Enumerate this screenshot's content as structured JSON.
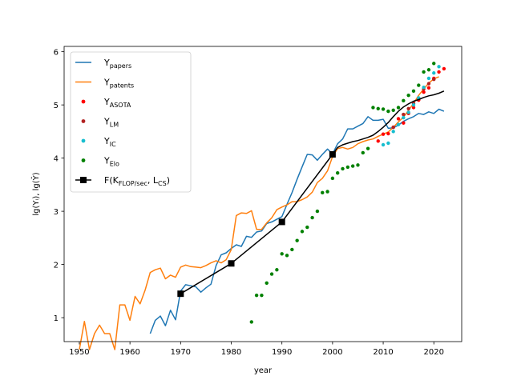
{
  "chart_data": {
    "type": "line",
    "title": "",
    "xlabel": "year",
    "ylabel": "lg(Yᵢ), lg(Ŷ)",
    "xlim": [
      1947,
      2025.5
    ],
    "ylim": [
      0.55,
      6.1
    ],
    "xticks": [
      1950,
      1960,
      1970,
      1980,
      1990,
      2000,
      2010,
      2020
    ],
    "yticks": [
      1,
      2,
      3,
      4,
      5,
      6
    ],
    "grid": false,
    "legend_position": "upper-left",
    "series": [
      {
        "name": "Y_papers",
        "label_main": "Y",
        "label_sub": "papers",
        "kind": "line",
        "color": "#1f77b4",
        "x": [
          1964,
          1965,
          1966,
          1967,
          1968,
          1969,
          1970,
          1971,
          1972,
          1973,
          1974,
          1975,
          1976,
          1977,
          1978,
          1979,
          1980,
          1981,
          1982,
          1983,
          1984,
          1985,
          1986,
          1987,
          1988,
          1989,
          1990,
          1991,
          1992,
          1993,
          1994,
          1995,
          1996,
          1997,
          1998,
          1999,
          2000,
          2001,
          2002,
          2003,
          2004,
          2005,
          2006,
          2007,
          2008,
          2009,
          2010,
          2011,
          2012,
          2013,
          2014,
          2015,
          2016,
          2017,
          2018,
          2019,
          2020,
          2021,
          2022
        ],
        "y": [
          0.7,
          0.95,
          1.03,
          0.85,
          1.14,
          0.96,
          1.5,
          1.62,
          1.6,
          1.58,
          1.48,
          1.56,
          1.63,
          1.98,
          2.18,
          2.22,
          2.3,
          2.37,
          2.34,
          2.53,
          2.51,
          2.61,
          2.63,
          2.77,
          2.8,
          2.85,
          2.9,
          3.13,
          3.35,
          3.6,
          3.84,
          4.07,
          4.06,
          3.96,
          4.07,
          4.17,
          4.08,
          4.27,
          4.36,
          4.55,
          4.55,
          4.6,
          4.65,
          4.78,
          4.71,
          4.71,
          4.73,
          4.56,
          4.57,
          4.62,
          4.69,
          4.74,
          4.78,
          4.84,
          4.82,
          4.87,
          4.84,
          4.92,
          4.88
        ]
      },
      {
        "name": "Y_patents",
        "label_main": "Y",
        "label_sub": "patents",
        "kind": "line",
        "color": "#ff7f0e",
        "x": [
          1950,
          1951,
          1952,
          1953,
          1954,
          1955,
          1956,
          1957,
          1958,
          1959,
          1960,
          1961,
          1962,
          1963,
          1964,
          1965,
          1966,
          1967,
          1968,
          1969,
          1970,
          1971,
          1972,
          1973,
          1974,
          1975,
          1976,
          1977,
          1978,
          1979,
          1980,
          1981,
          1982,
          1983,
          1984,
          1985,
          1986,
          1987,
          1988,
          1989,
          1990,
          1991,
          1992,
          1993,
          1994,
          1995,
          1996,
          1997,
          1998,
          1999,
          2000,
          2001,
          2002,
          2003,
          2004,
          2005,
          2006,
          2007,
          2008,
          2009,
          2010,
          2011,
          2012,
          2013,
          2014,
          2015,
          2016,
          2017,
          2018,
          2019,
          2020,
          2021
        ],
        "y": [
          0.4,
          0.93,
          0.4,
          0.7,
          0.86,
          0.7,
          0.7,
          0.4,
          1.24,
          1.24,
          0.95,
          1.4,
          1.26,
          1.52,
          1.85,
          1.9,
          1.93,
          1.73,
          1.8,
          1.76,
          1.95,
          1.99,
          1.96,
          1.95,
          1.94,
          1.98,
          2.03,
          2.07,
          2.03,
          2.09,
          2.28,
          2.92,
          2.97,
          2.96,
          3.01,
          2.66,
          2.66,
          2.78,
          2.88,
          3.03,
          3.08,
          3.12,
          3.18,
          3.18,
          3.22,
          3.27,
          3.36,
          3.54,
          3.62,
          3.76,
          4.03,
          4.18,
          4.2,
          4.17,
          4.2,
          4.27,
          4.31,
          4.34,
          4.36,
          4.41,
          4.45,
          4.49,
          4.58,
          4.68,
          4.77,
          4.9,
          5.03,
          5.18,
          5.3,
          5.41,
          5.49,
          5.53
        ]
      },
      {
        "name": "Y_ASOTA",
        "label_main": "Y",
        "label_sub": "ASOTA",
        "kind": "scatter",
        "color": "#ff0000",
        "x": [
          2009,
          2010,
          2011,
          2012,
          2013,
          2014,
          2015,
          2016,
          2017,
          2018,
          2019,
          2020,
          2021,
          2022
        ],
        "y": [
          4.32,
          4.45,
          4.46,
          4.58,
          4.74,
          4.66,
          4.84,
          4.95,
          5.09,
          5.24,
          5.32,
          5.5,
          5.62,
          5.68
        ]
      },
      {
        "name": "Y_LM",
        "label_main": "Y",
        "label_sub": "LM",
        "kind": "scatter",
        "color": "#b22222",
        "x": [
          2012,
          2014,
          2015,
          2016,
          2017,
          2018,
          2019,
          2020
        ],
        "y": [
          4.58,
          4.82,
          4.93,
          5.03,
          5.12,
          5.3,
          5.4,
          5.48
        ]
      },
      {
        "name": "Y_IC",
        "label_main": "Y",
        "label_sub": "IC",
        "kind": "scatter",
        "color": "#17becf",
        "x": [
          2010,
          2011,
          2012,
          2013,
          2014,
          2015,
          2016,
          2017,
          2018,
          2019,
          2020,
          2021
        ],
        "y": [
          4.25,
          4.28,
          4.5,
          4.63,
          4.76,
          4.86,
          5.0,
          5.13,
          5.33,
          5.5,
          5.6,
          5.72
        ]
      },
      {
        "name": "Y_Elo",
        "label_main": "Y",
        "label_sub": "Elo",
        "kind": "scatter",
        "color": "#008000",
        "x": [
          1984,
          1985,
          1986,
          1987,
          1988,
          1989,
          1990,
          1991,
          1992,
          1993,
          1994,
          1995,
          1996,
          1997,
          1998,
          1999,
          2000,
          2001,
          2002,
          2003,
          2004,
          2005,
          2006,
          2007,
          2008,
          2009,
          2010,
          2011,
          2012,
          2013,
          2014,
          2015,
          2016,
          2017,
          2018,
          2019,
          2020
        ],
        "y": [
          0.92,
          1.42,
          1.42,
          1.65,
          1.82,
          1.9,
          2.2,
          2.17,
          2.28,
          2.45,
          2.62,
          2.7,
          2.88,
          3.0,
          3.35,
          3.37,
          3.62,
          3.72,
          3.8,
          3.83,
          3.85,
          3.87,
          4.1,
          4.18,
          4.95,
          4.93,
          4.92,
          4.88,
          4.9,
          4.95,
          5.08,
          5.18,
          5.26,
          5.37,
          5.62,
          5.66,
          5.78
        ]
      },
      {
        "name": "F(K_FLOP/sec, L_CS)",
        "label_main": "F(K",
        "label_sub": "FLOP/sec",
        "label_mid": ", L",
        "label_sub2": "CS",
        "label_end": ")",
        "kind": "line-markers",
        "color": "#000000",
        "x": [
          1970,
          1980,
          1990,
          2000,
          2001,
          2002,
          2003,
          2004,
          2005,
          2006,
          2007,
          2008,
          2009,
          2010,
          2011,
          2012,
          2013,
          2014,
          2015,
          2016,
          2017,
          2018,
          2019,
          2020,
          2021,
          2022
        ],
        "y": [
          1.45,
          2.02,
          2.8,
          4.07,
          4.2,
          4.25,
          4.28,
          4.31,
          4.33,
          4.36,
          4.39,
          4.43,
          4.5,
          4.58,
          4.67,
          4.78,
          4.88,
          4.96,
          5.02,
          5.07,
          5.1,
          5.14,
          5.17,
          5.19,
          5.22,
          5.26
        ],
        "marker_x": [
          1970,
          1980,
          1990,
          2000
        ]
      }
    ]
  }
}
